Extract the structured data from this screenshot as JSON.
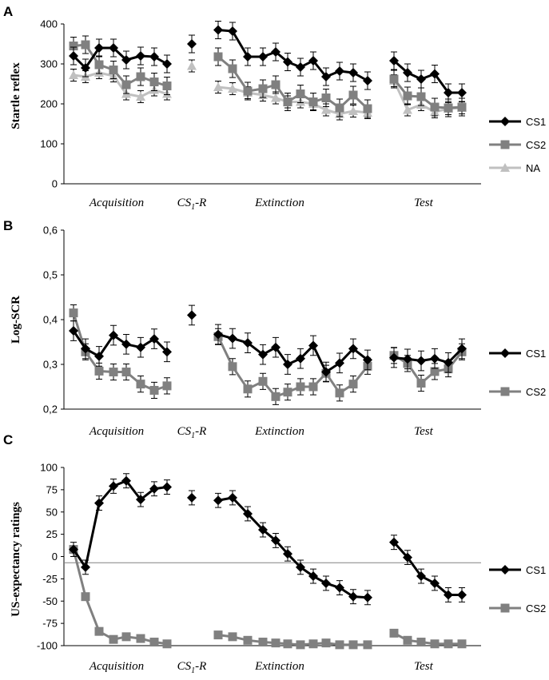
{
  "figure": {
    "phase_labels": [
      "Acquisition",
      "Extinction",
      "Test"
    ],
    "csr_label": {
      "main": "CS",
      "sub": "1",
      "suffix": "-R"
    }
  },
  "colors": {
    "CS1": "#000000",
    "CS2": "#808080",
    "NA": "#c0c0c0",
    "error": "#000000",
    "refline": "#808080"
  },
  "chart_data": [
    {
      "panel": "A",
      "type": "line",
      "ylabel": "Startle reflex",
      "ylim": [
        0,
        400
      ],
      "yticks": [
        0,
        100,
        200,
        300,
        400
      ],
      "ytick_labels": [
        "0",
        "100",
        "200",
        "300",
        "400"
      ],
      "series": [
        {
          "name": "CS1",
          "marker": "diamond",
          "acquisition": [
            320,
            290,
            340,
            340,
            310,
            320,
            318,
            300
          ],
          "csr": 350,
          "extinction": [
            385,
            382,
            318,
            318,
            330,
            305,
            292,
            308,
            268,
            282,
            278,
            258
          ],
          "test": [
            308,
            278,
            262,
            275,
            228,
            228
          ],
          "error": 22
        },
        {
          "name": "CS2",
          "marker": "square",
          "acquisition": [
            345,
            348,
            298,
            285,
            248,
            268,
            255,
            245
          ],
          "csr": null,
          "extinction": [
            318,
            288,
            232,
            238,
            248,
            205,
            225,
            205,
            215,
            190,
            222,
            188
          ],
          "test": [
            262,
            220,
            218,
            192,
            190,
            192
          ],
          "error": 22
        },
        {
          "name": "NA",
          "marker": "triangle",
          "acquisition": [
            272,
            268,
            278,
            270,
            225,
            218,
            235,
            225
          ],
          "csr": 295,
          "extinction": [
            242,
            238,
            228,
            222,
            215,
            205,
            205,
            200,
            185,
            175,
            182,
            178
          ],
          "test": [
            258,
            185,
            198,
            180,
            188,
            190
          ],
          "error": 15
        }
      ]
    },
    {
      "panel": "B",
      "type": "line",
      "ylabel": "Log-SCR",
      "ylim": [
        0.2,
        0.6
      ],
      "yticks": [
        0.2,
        0.3,
        0.4,
        0.5,
        0.6
      ],
      "ytick_labels": [
        "0,2",
        "0,3",
        "0,4",
        "0,5",
        "0,6"
      ],
      "series": [
        {
          "name": "CS1",
          "marker": "diamond",
          "acquisition": [
            0.375,
            0.335,
            0.318,
            0.365,
            0.345,
            0.338,
            0.357,
            0.328
          ],
          "csr": 0.41,
          "extinction": [
            0.367,
            0.358,
            0.348,
            0.322,
            0.338,
            0.3,
            0.313,
            0.342,
            0.283,
            0.303,
            0.335,
            0.31
          ],
          "test": [
            0.315,
            0.312,
            0.308,
            0.313,
            0.304,
            0.335
          ],
          "error": 0.022
        },
        {
          "name": "CS2",
          "marker": "square",
          "acquisition": [
            0.415,
            0.328,
            0.285,
            0.283,
            0.283,
            0.256,
            0.242,
            0.252
          ],
          "csr": null,
          "extinction": [
            0.362,
            0.295,
            0.245,
            0.262,
            0.228,
            0.238,
            0.25,
            0.25,
            0.28,
            0.236,
            0.256,
            0.296
          ],
          "test": [
            0.32,
            0.302,
            0.258,
            0.284,
            0.29,
            0.328
          ],
          "error": 0.018
        }
      ]
    },
    {
      "panel": "C",
      "type": "line",
      "ylabel": "US-expectancy ratings",
      "ylim": [
        -100,
        100
      ],
      "yticks": [
        -100,
        -75,
        -50,
        -25,
        0,
        25,
        50,
        75,
        100
      ],
      "ytick_labels": [
        "-100",
        "-75",
        "-50",
        "-25",
        "0",
        "25",
        "50",
        "75",
        "100"
      ],
      "reference_line": -7,
      "series": [
        {
          "name": "CS1",
          "marker": "diamond",
          "acquisition": [
            8,
            -12,
            60,
            79,
            85,
            64,
            76,
            78
          ],
          "csr": 66,
          "extinction": [
            63,
            66,
            48,
            30,
            18,
            3,
            -12,
            -22,
            -30,
            -35,
            -45,
            -46
          ],
          "test": [
            16,
            -1,
            -22,
            -30,
            -43,
            -43
          ],
          "error": 8
        },
        {
          "name": "CS2",
          "marker": "square",
          "acquisition": [
            8,
            -45,
            -84,
            -93,
            -90,
            -92,
            -96,
            -98
          ],
          "csr": null,
          "extinction": [
            -88,
            -90,
            -94,
            -96,
            -97,
            -98,
            -99,
            -98,
            -97,
            -99,
            -99,
            -99
          ],
          "test": [
            -86,
            -94,
            -96,
            -98,
            -98,
            -98
          ],
          "error": 0
        }
      ]
    }
  ]
}
